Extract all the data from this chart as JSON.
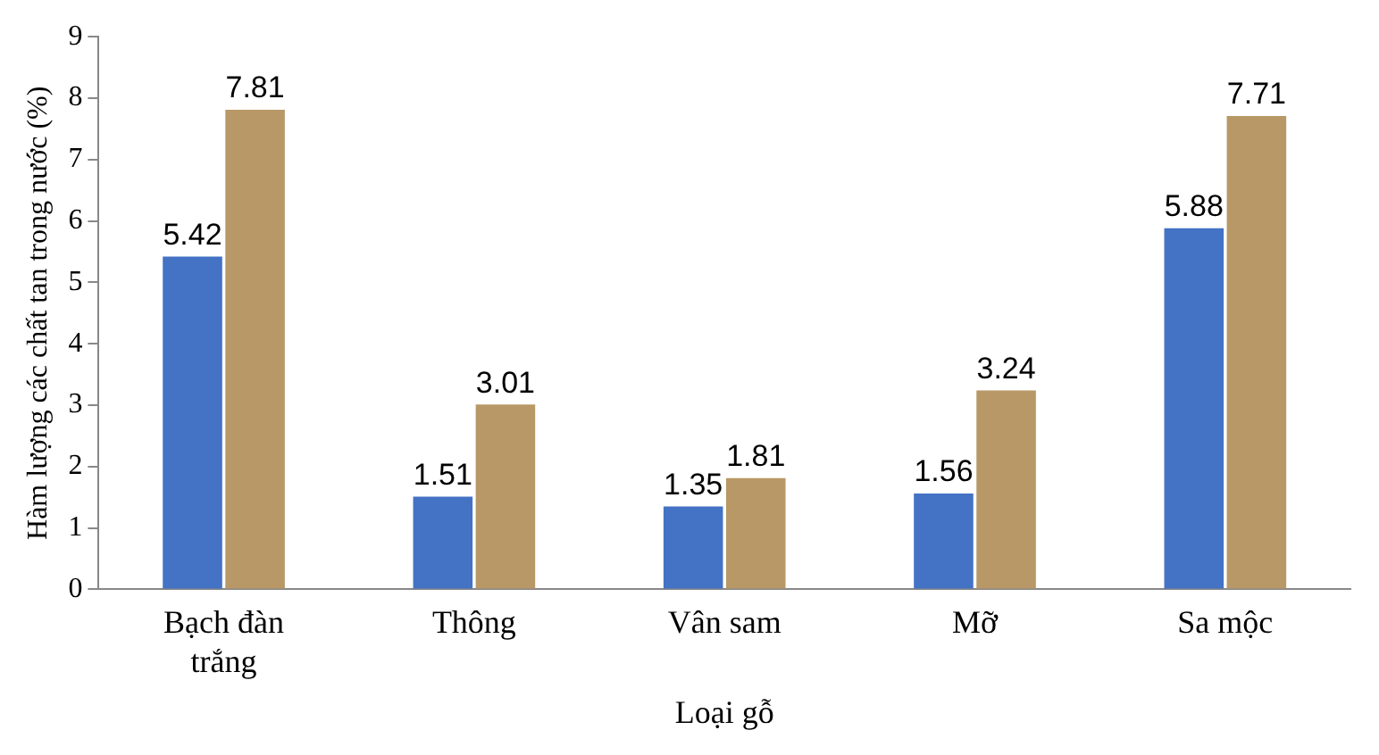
{
  "chart_data": {
    "type": "bar",
    "xlabel": "Loại gỗ",
    "ylabel": "Hàm lượng các chất tan trong nước (%)",
    "categories": [
      "Bạch đàn trắng",
      "Thông",
      "Vân sam",
      "Mỡ",
      "Sa mộc"
    ],
    "series": [
      {
        "color": "#4472c4",
        "values": [
          5.42,
          1.51,
          1.35,
          1.56,
          5.88
        ]
      },
      {
        "color": "#b89866",
        "values": [
          7.81,
          3.01,
          1.81,
          3.24,
          7.71
        ]
      }
    ],
    "ylim": [
      0,
      9
    ],
    "yticks": [
      0,
      1,
      2,
      3,
      4,
      5,
      6,
      7,
      8,
      9
    ],
    "grid": false,
    "legend": false,
    "data_labels": true
  }
}
